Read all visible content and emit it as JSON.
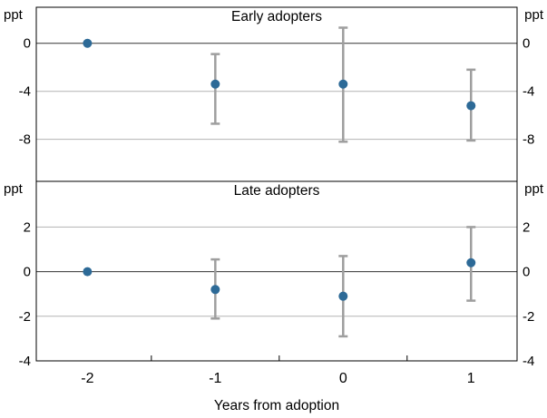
{
  "figure": {
    "xlabel": "Years from adoption",
    "unit_label": "ppt",
    "x_ticks": [
      -2,
      -1,
      0,
      1
    ],
    "xlim": [
      -2.4,
      1.36
    ],
    "x_minor_ticks": [
      -1.5,
      -0.5,
      0.5
    ],
    "colors": {
      "point": "#2d6a97",
      "errorbar": "#9e9e9e",
      "gridline": "#b3b3b3",
      "zero_line": "#333333",
      "frame": "#000000"
    }
  },
  "chart_data": [
    {
      "type": "scatter",
      "title": "Early adopters",
      "ylabel": "ppt",
      "ylim": [
        -11.5,
        3
      ],
      "y_ticks": [
        0,
        -4,
        -8
      ],
      "x": [
        -2,
        -1,
        0,
        1
      ],
      "values": [
        0,
        -3.4,
        -3.4,
        -5.2
      ],
      "ci_low": [
        null,
        -6.7,
        -8.2,
        -8.1
      ],
      "ci_high": [
        null,
        -0.9,
        1.3,
        -2.2
      ]
    },
    {
      "type": "scatter",
      "title": "Late adopters",
      "ylabel": "ppt",
      "ylim": [
        -4,
        4.05
      ],
      "y_ticks": [
        2,
        0,
        -2,
        -4
      ],
      "x": [
        -2,
        -1,
        0,
        1
      ],
      "values": [
        0,
        -0.8,
        -1.1,
        0.4
      ],
      "ci_low": [
        null,
        -2.1,
        -2.9,
        -1.3
      ],
      "ci_high": [
        null,
        0.55,
        0.7,
        2.0
      ]
    }
  ]
}
